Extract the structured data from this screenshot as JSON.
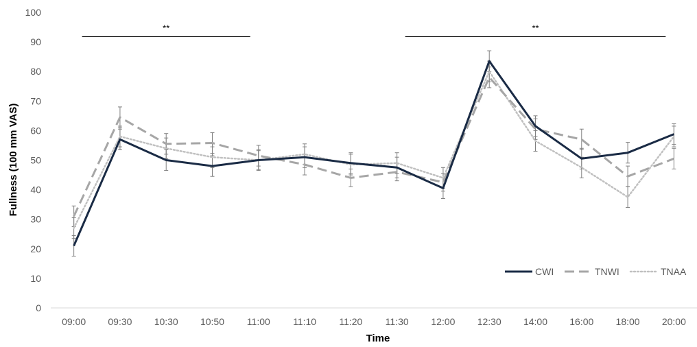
{
  "chart_data": {
    "type": "line",
    "xlabel": "Time",
    "ylabel": "Fullness (100 mm VAS)",
    "ylim": [
      0,
      100
    ],
    "yticks": [
      0,
      10,
      20,
      30,
      40,
      50,
      60,
      70,
      80,
      90,
      100
    ],
    "categories": [
      "09:00",
      "09:30",
      "10:30",
      "10:50",
      "11:00",
      "11:10",
      "11:20",
      "11:30",
      "12:00",
      "12:30",
      "14:00",
      "16:00",
      "18:00",
      "20:00"
    ],
    "series": [
      {
        "name": "CWI",
        "color": "#1a2b45",
        "dash": "solid",
        "values": [
          21,
          57,
          50,
          48,
          50,
          51,
          49,
          47.5,
          40.5,
          83.5,
          61.5,
          50.5,
          52.5,
          58.8
        ],
        "errors": [
          3.5,
          3.5,
          3.5,
          3.5,
          3.2,
          3.5,
          3.5,
          3.5,
          3.5,
          3.5,
          3.5,
          3.5,
          3.5,
          3.5
        ]
      },
      {
        "name": "TNWI",
        "color": "#a6a6a6",
        "dash": "dashed",
        "values": [
          31,
          64.5,
          55.5,
          55.8,
          51.5,
          48.5,
          44,
          46,
          42.5,
          78,
          60.5,
          57,
          44.5,
          50.5
        ],
        "errors": [
          3.5,
          3.5,
          3.5,
          3.5,
          3.5,
          3.5,
          3,
          3,
          3,
          3.5,
          3.5,
          3.5,
          3.5,
          3.5
        ]
      },
      {
        "name": "TNAA",
        "color": "#c0c0c0",
        "dash": "dotted",
        "values": [
          27,
          58,
          54,
          51,
          50,
          52,
          48.5,
          49,
          44,
          80,
          56.5,
          47.5,
          37.5,
          58
        ],
        "errors": [
          3.5,
          3.5,
          3.5,
          3.5,
          3.5,
          3.5,
          3.5,
          3.5,
          3.5,
          3.5,
          3.5,
          3.5,
          3.5,
          3.5
        ]
      }
    ],
    "annotations": [
      {
        "label": "**",
        "from": "09:00",
        "to": "11:00",
        "y": 92
      },
      {
        "label": "**",
        "from": "11:30",
        "to": "20:00",
        "y": 92
      }
    ],
    "legend": "bottom-right",
    "grid": false
  }
}
